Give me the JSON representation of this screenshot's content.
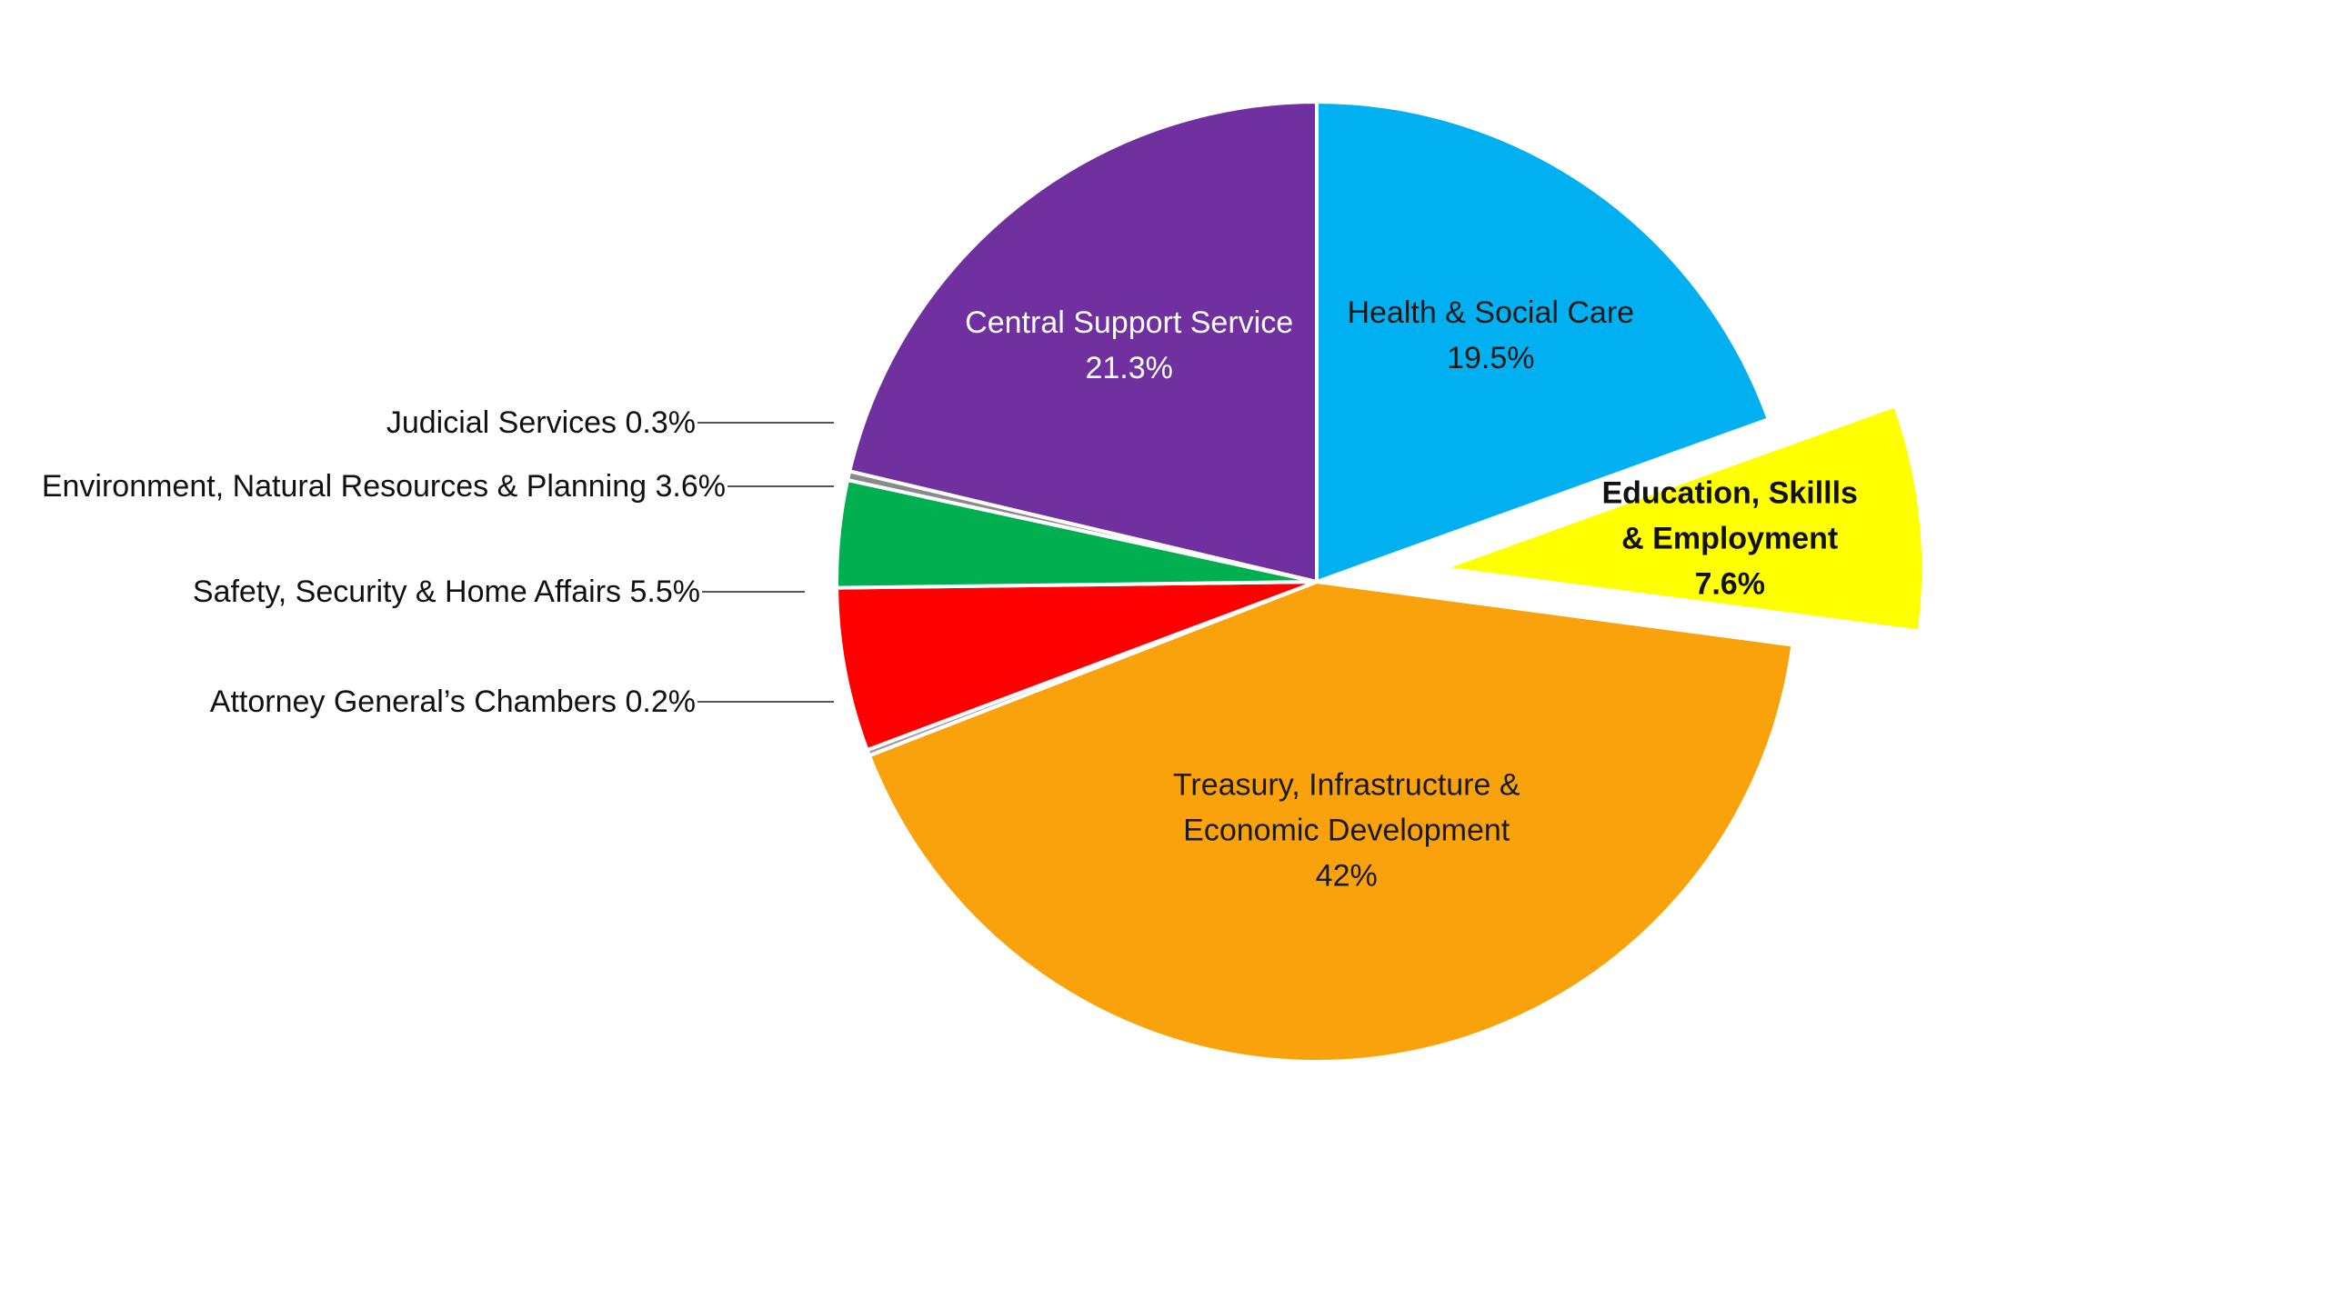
{
  "chart_data": {
    "type": "pie",
    "title": "",
    "start_angle_deg": 0,
    "direction": "clockwise",
    "exploded_slice": "Education, Skillls & Employment",
    "slices": [
      {
        "name": "Health & Social Care",
        "value": 19.5,
        "label_lines": [
          "Health & Social Care",
          "19.5%"
        ],
        "color": "#00B0F0",
        "label_color": "#1a1a1a",
        "label_position": "inside",
        "bold": false,
        "exploded": false
      },
      {
        "name": "Education, Skillls & Employment",
        "value": 7.6,
        "label_lines": [
          "Education, Skillls",
          "& Employment",
          "7.6%"
        ],
        "color": "#FFFF00",
        "label_color": "#111111",
        "label_position": "inside",
        "bold": true,
        "exploded": true
      },
      {
        "name": "Treasury, Infrastructure & Economic Development",
        "value": 42,
        "label_lines": [
          "Treasury, Infrastructure &",
          "Economic Development",
          "42%"
        ],
        "color": "#F9A20B",
        "label_color": "#1a1a1a",
        "label_position": "inside",
        "bold": false,
        "exploded": false
      },
      {
        "name": "Attorney General’s Chambers",
        "value": 0.2,
        "label_lines": [
          "Attorney General’s Chambers 0.2%"
        ],
        "color": "#9E9E9E",
        "label_color": "#111111",
        "label_position": "outside-left",
        "bold": false,
        "exploded": false
      },
      {
        "name": "Safety, Security & Home Affairs",
        "value": 5.5,
        "label_lines": [
          "Safety, Security & Home Affairs 5.5%"
        ],
        "color": "#FF0000",
        "label_color": "#111111",
        "label_position": "outside-left",
        "bold": false,
        "exploded": false
      },
      {
        "name": "Environment, Natural Resources & Planning",
        "value": 3.6,
        "label_lines": [
          "Environment, Natural Resources & Planning 3.6%"
        ],
        "color": "#00B050",
        "label_color": "#111111",
        "label_position": "outside-left",
        "bold": false,
        "exploded": false
      },
      {
        "name": "Judicial Services",
        "value": 0.3,
        "label_lines": [
          "Judicial Services 0.3%"
        ],
        "color": "#8A8A8A",
        "label_color": "#111111",
        "label_position": "outside-left",
        "bold": false,
        "exploded": false
      },
      {
        "name": "Central Support Service",
        "value": 21.3,
        "label_lines": [
          "Central Support Service",
          "21.3%"
        ],
        "color": "#7030A0",
        "label_color": "#ffffff",
        "label_position": "inside",
        "bold": false,
        "exploded": false
      }
    ]
  }
}
